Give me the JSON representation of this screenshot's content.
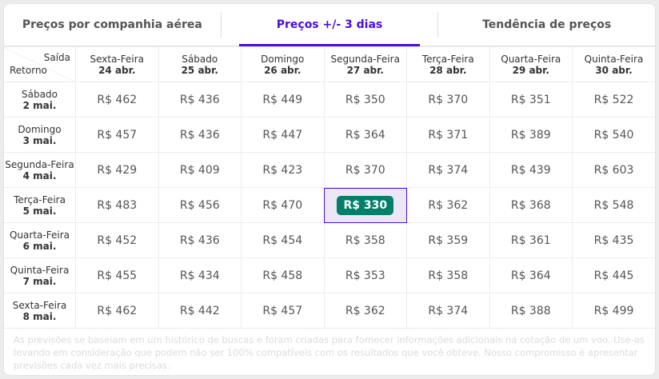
{
  "tabs": [
    {
      "label": "Preços por companhia aérea"
    },
    {
      "label": "Preços +/- 3 dias"
    },
    {
      "label": "Tendência de preços"
    }
  ],
  "active_tab": 1,
  "corner": {
    "departure": "Saída",
    "return": "Retorno"
  },
  "columns": [
    {
      "day": "Sexta-Feira",
      "date": "24 abr."
    },
    {
      "day": "Sábado",
      "date": "25 abr."
    },
    {
      "day": "Domingo",
      "date": "26 abr."
    },
    {
      "day": "Segunda-Feira",
      "date": "27 abr."
    },
    {
      "day": "Terça-Feira",
      "date": "28 abr."
    },
    {
      "day": "Quarta-Feira",
      "date": "29 abr."
    },
    {
      "day": "Quinta-Feira",
      "date": "30 abr."
    }
  ],
  "rows": [
    {
      "day": "Sábado",
      "date": "2 mai.",
      "prices": [
        "R$ 462",
        "R$ 436",
        "R$ 449",
        "R$ 350",
        "R$ 370",
        "R$ 351",
        "R$ 522"
      ]
    },
    {
      "day": "Domingo",
      "date": "3 mai.",
      "prices": [
        "R$ 457",
        "R$ 436",
        "R$ 447",
        "R$ 364",
        "R$ 371",
        "R$ 389",
        "R$ 540"
      ]
    },
    {
      "day": "Segunda-Feira",
      "date": "4 mai.",
      "prices": [
        "R$ 429",
        "R$ 409",
        "R$ 423",
        "R$ 370",
        "R$ 374",
        "R$ 439",
        "R$ 603"
      ]
    },
    {
      "day": "Terça-Feira",
      "date": "5 mai.",
      "prices": [
        "R$ 483",
        "R$ 456",
        "R$ 470",
        "R$ 330",
        "R$ 362",
        "R$ 368",
        "R$ 548"
      ]
    },
    {
      "day": "Quarta-Feira",
      "date": "6 mai.",
      "prices": [
        "R$ 452",
        "R$ 436",
        "R$ 454",
        "R$ 358",
        "R$ 359",
        "R$ 361",
        "R$ 435"
      ]
    },
    {
      "day": "Quinta-Feira",
      "date": "7 mai.",
      "prices": [
        "R$ 455",
        "R$ 434",
        "R$ 458",
        "R$ 353",
        "R$ 358",
        "R$ 364",
        "R$ 445"
      ]
    },
    {
      "day": "Sexta-Feira",
      "date": "8 mai.",
      "prices": [
        "R$ 462",
        "R$ 442",
        "R$ 457",
        "R$ 362",
        "R$ 374",
        "R$ 388",
        "R$ 499"
      ]
    }
  ],
  "best": {
    "row": 3,
    "col": 3
  },
  "colors": {
    "accent": "#4a0fd8",
    "best_badge": "#00806a",
    "best_cell": "#ece6f5"
  },
  "note": "As previsões se baseiam em um histórico de buscas e foram criadas para fornecer informações adicionais na cotação de um voo. Use-as levando em consideração que podem não ser 100% compatíveis com os resultados que você obteve. Nosso compromisso é apresentar previsões cada vez mais precisas."
}
